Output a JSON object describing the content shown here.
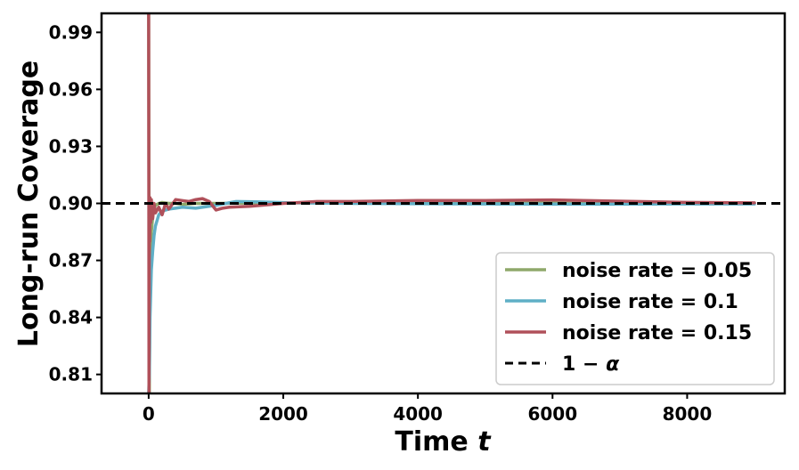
{
  "chart_data": {
    "type": "line",
    "title": "",
    "xlabel_main": "Time ",
    "xlabel_var": "t",
    "ylabel": "Long-run Coverage",
    "xlim": [
      -700,
      9450
    ],
    "ylim": [
      0.8,
      1.0
    ],
    "x_ticks": [
      0,
      2000,
      4000,
      6000,
      8000
    ],
    "x_tick_labels": [
      "0",
      "2000",
      "4000",
      "6000",
      "8000"
    ],
    "y_ticks": [
      0.81,
      0.84,
      0.87,
      0.9,
      0.93,
      0.96,
      0.99
    ],
    "y_tick_labels": [
      "0.81",
      "0.84",
      "0.87",
      "0.90",
      "0.93",
      "0.96",
      "0.99"
    ],
    "grid": false,
    "legend_position": "lower-right",
    "reference_line": {
      "label_main": "1 − ",
      "label_var": "α",
      "value": 0.9,
      "color": "#000000",
      "style": "dashed"
    },
    "series": [
      {
        "name": "noise rate = 0.05",
        "color": "#8FA86A",
        "x": [
          0,
          10,
          20,
          40,
          60,
          80,
          100,
          150,
          200,
          300,
          400,
          500,
          700,
          1000,
          1500,
          2000,
          3000,
          4000,
          5000,
          6000,
          7000,
          8000,
          9000
        ],
        "y": [
          1.0,
          0.8,
          0.87,
          0.885,
          0.893,
          0.897,
          0.899,
          0.9,
          0.9005,
          0.9,
          0.9,
          0.8995,
          0.9,
          0.9,
          0.9002,
          0.9003,
          0.9002,
          0.9001,
          0.9001,
          0.9001,
          0.9,
          0.9,
          0.9
        ]
      },
      {
        "name": "noise rate = 0.1",
        "color": "#5FAFC6",
        "x": [
          0,
          10,
          20,
          40,
          60,
          80,
          100,
          150,
          200,
          300,
          400,
          500,
          700,
          1000,
          1300,
          1600,
          2000,
          2500,
          3000,
          4000,
          5000,
          6000,
          7000,
          8000,
          9000
        ],
        "y": [
          0.8,
          0.81,
          0.84,
          0.865,
          0.875,
          0.883,
          0.888,
          0.894,
          0.896,
          0.897,
          0.8975,
          0.898,
          0.8975,
          0.899,
          0.901,
          0.9008,
          0.9004,
          0.9002,
          0.9,
          0.8998,
          0.8997,
          0.8996,
          0.8996,
          0.8997,
          0.8997
        ]
      },
      {
        "name": "noise rate = 0.15",
        "color": "#B0505A",
        "x": [
          0,
          5,
          10,
          15,
          20,
          30,
          40,
          60,
          80,
          100,
          150,
          200,
          250,
          300,
          400,
          500,
          600,
          700,
          800,
          900,
          1000,
          1100,
          1200,
          1500,
          2000,
          2500,
          3000,
          4000,
          5000,
          6000,
          7000,
          8000,
          9000
        ],
        "y": [
          1.0,
          0.8,
          0.9,
          0.88,
          0.903,
          0.89,
          0.902,
          0.892,
          0.9,
          0.895,
          0.898,
          0.894,
          0.9,
          0.897,
          0.902,
          0.9015,
          0.901,
          0.902,
          0.9025,
          0.901,
          0.8965,
          0.8975,
          0.898,
          0.8985,
          0.9,
          0.901,
          0.901,
          0.9015,
          0.9015,
          0.9018,
          0.9012,
          0.9005,
          0.9003
        ]
      }
    ]
  }
}
